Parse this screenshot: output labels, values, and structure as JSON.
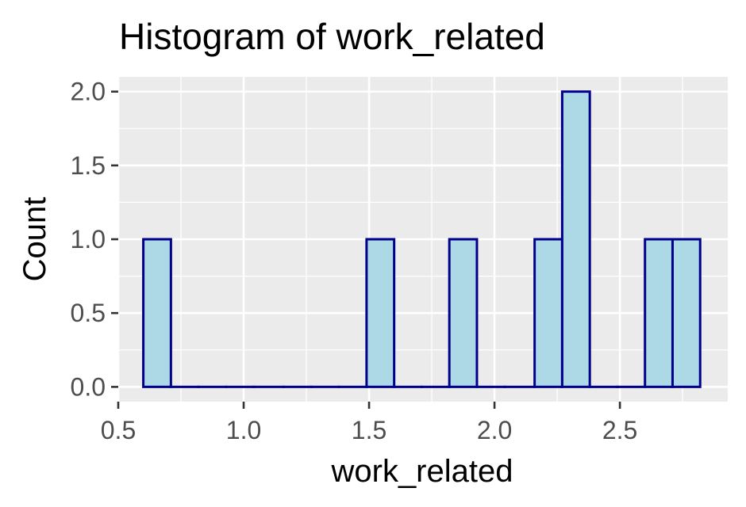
{
  "chart_data": {
    "type": "bar",
    "title": "Histogram of work_related",
    "xlabel": "work_related",
    "ylabel": "Count",
    "xlim": [
      0.5,
      2.93
    ],
    "ylim": [
      -0.1,
      2.1
    ],
    "x_ticks": [
      "0.5",
      "1.0",
      "1.5",
      "2.0",
      "2.5"
    ],
    "y_ticks": [
      "0.0",
      "0.5",
      "1.0",
      "1.5",
      "2.0"
    ],
    "x_tick_values": [
      0.5,
      1.0,
      1.5,
      2.0,
      2.5
    ],
    "y_tick_values": [
      0.0,
      0.5,
      1.0,
      1.5,
      2.0
    ],
    "bins": [
      {
        "start": 0.6,
        "end": 0.71,
        "count": 1
      },
      {
        "start": 0.71,
        "end": 0.82,
        "count": 0
      },
      {
        "start": 0.82,
        "end": 0.93,
        "count": 0
      },
      {
        "start": 0.93,
        "end": 1.04,
        "count": 0
      },
      {
        "start": 1.04,
        "end": 1.16,
        "count": 0
      },
      {
        "start": 1.16,
        "end": 1.27,
        "count": 0
      },
      {
        "start": 1.27,
        "end": 1.38,
        "count": 0
      },
      {
        "start": 1.38,
        "end": 1.49,
        "count": 0
      },
      {
        "start": 1.49,
        "end": 1.6,
        "count": 1
      },
      {
        "start": 1.6,
        "end": 1.71,
        "count": 0
      },
      {
        "start": 1.71,
        "end": 1.82,
        "count": 0
      },
      {
        "start": 1.82,
        "end": 1.93,
        "count": 1
      },
      {
        "start": 1.93,
        "end": 2.04,
        "count": 0
      },
      {
        "start": 2.04,
        "end": 2.16,
        "count": 0
      },
      {
        "start": 2.16,
        "end": 2.27,
        "count": 1
      },
      {
        "start": 2.27,
        "end": 2.38,
        "count": 2
      },
      {
        "start": 2.38,
        "end": 2.49,
        "count": 0
      },
      {
        "start": 2.49,
        "end": 2.6,
        "count": 0
      },
      {
        "start": 2.6,
        "end": 2.71,
        "count": 1
      },
      {
        "start": 2.71,
        "end": 2.82,
        "count": 1
      }
    ],
    "grid": true,
    "colors": {
      "fill": "#add8e6",
      "outline": "#00008b",
      "panel_background": "#ebebeb",
      "grid": "#ffffff",
      "tick_text": "#4d4d4d",
      "tick_mark": "#333333"
    }
  }
}
